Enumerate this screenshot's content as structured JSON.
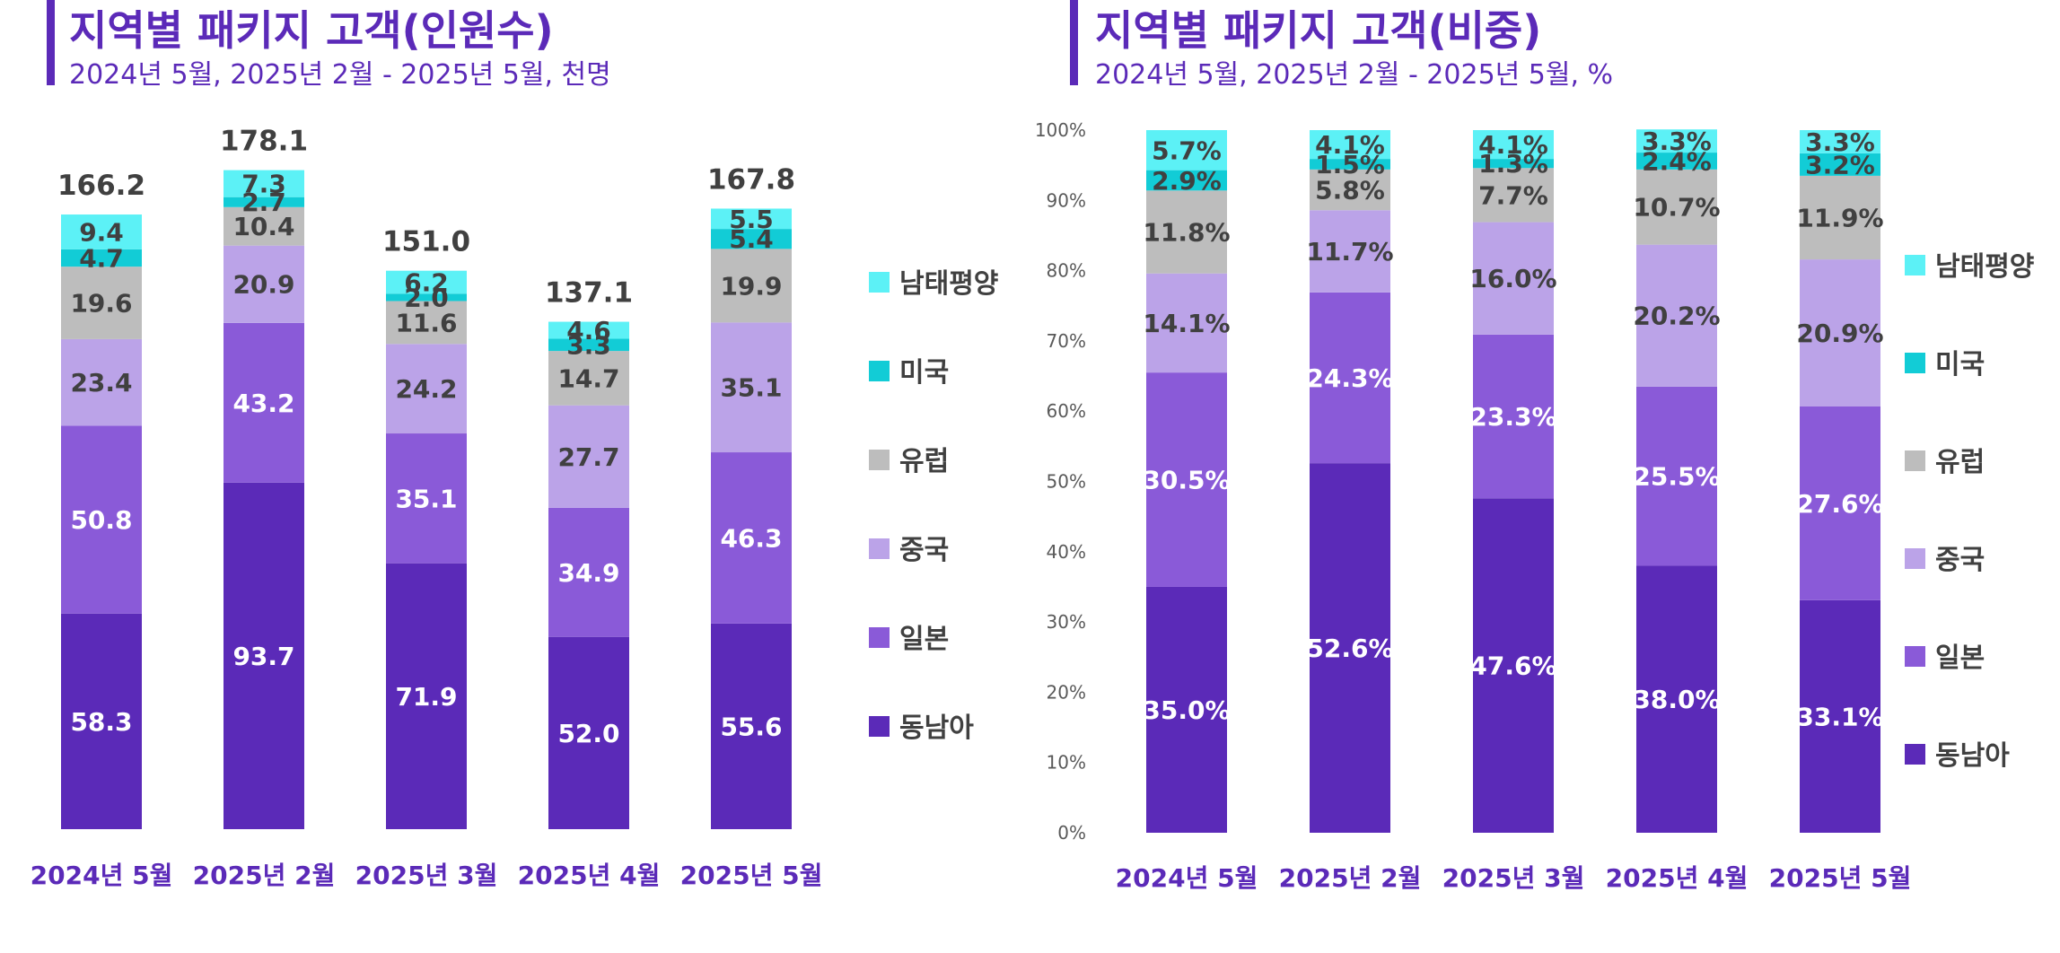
{
  "colors": {
    "동남아": "#5b2ab8",
    "일본": "#8a5ad8",
    "중국": "#bba3e8",
    "유럽": "#bdbdbd",
    "미국": "#12ccd6",
    "남태평양": "#5cf1f6",
    "title": "#5b2ab8",
    "label_dark": "#404040",
    "label_light": "#ffffff",
    "tick_text": "#595959"
  },
  "chart_data": [
    {
      "type": "bar",
      "stacked": true,
      "title": "지역별 패키지 고객(인원수)",
      "subtitle": "2024년 5월, 2025년 2월 - 2025년 5월, 천명",
      "categories": [
        "2024년 5월",
        "2025년 2월",
        "2025년 3월",
        "2025년 4월",
        "2025년 5월"
      ],
      "series": [
        {
          "name": "동남아",
          "values": [
            58.3,
            93.7,
            71.9,
            52.0,
            55.6
          ],
          "labels": [
            "58.3",
            "93.7",
            "71.9",
            "52.0",
            "55.6"
          ]
        },
        {
          "name": "일본",
          "values": [
            50.8,
            43.2,
            35.1,
            34.9,
            46.3
          ],
          "labels": [
            "50.8",
            "43.2",
            "35.1",
            "34.9",
            "46.3"
          ]
        },
        {
          "name": "중국",
          "values": [
            23.4,
            20.9,
            24.2,
            27.7,
            35.1
          ],
          "labels": [
            "23.4",
            "20.9",
            "24.2",
            "27.7",
            "35.1"
          ]
        },
        {
          "name": "유럽",
          "values": [
            19.6,
            10.4,
            11.6,
            14.7,
            19.9
          ],
          "labels": [
            "19.6",
            "10.4",
            "11.6",
            "14.7",
            "19.9"
          ]
        },
        {
          "name": "미국",
          "values": [
            4.7,
            2.7,
            2.0,
            3.3,
            5.4
          ],
          "labels": [
            "4.7",
            "2.7",
            "2.0",
            "3.3",
            "5.4"
          ]
        },
        {
          "name": "남태평양",
          "values": [
            9.4,
            7.3,
            6.2,
            4.6,
            5.5
          ],
          "labels": [
            "9.4",
            "7.3",
            "6.2",
            "4.6",
            "5.5"
          ]
        }
      ],
      "totals": [
        "166.2",
        "178.1",
        "151.0",
        "137.1",
        "167.8"
      ],
      "ylim": [
        0,
        190
      ],
      "y_axis_visible": false,
      "grid": false,
      "legend_position": "right",
      "legend_order": [
        "남태평양",
        "미국",
        "유럽",
        "중국",
        "일본",
        "동남아"
      ]
    },
    {
      "type": "bar",
      "stacked": true,
      "title": "지역별 패키지 고객(비중)",
      "subtitle": "2024년 5월, 2025년 2월 - 2025년 5월, %",
      "categories": [
        "2024년 5월",
        "2025년 2월",
        "2025년 3월",
        "2025년 4월",
        "2025년 5월"
      ],
      "series": [
        {
          "name": "동남아",
          "values": [
            35.0,
            52.6,
            47.6,
            38.0,
            33.1
          ],
          "labels": [
            "35.0%",
            "52.6%",
            "47.6%",
            "38.0%",
            "33.1%"
          ]
        },
        {
          "name": "일본",
          "values": [
            30.5,
            24.3,
            23.3,
            25.5,
            27.6
          ],
          "labels": [
            "30.5%",
            "24.3%",
            "23.3%",
            "25.5%",
            "27.6%"
          ]
        },
        {
          "name": "중국",
          "values": [
            14.1,
            11.7,
            16.0,
            20.2,
            20.9
          ],
          "labels": [
            "14.1%",
            "11.7%",
            "16.0%",
            "20.2%",
            "20.9%"
          ]
        },
        {
          "name": "유럽",
          "values": [
            11.8,
            5.8,
            7.7,
            10.7,
            11.9
          ],
          "labels": [
            "11.8%",
            "5.8%",
            "7.7%",
            "10.7%",
            "11.9%"
          ]
        },
        {
          "name": "미국",
          "values": [
            2.9,
            1.5,
            1.3,
            2.4,
            3.2
          ],
          "labels": [
            "2.9%",
            "1.5%",
            "1.3%",
            "2.4%",
            "3.2%"
          ]
        },
        {
          "name": "남태평양",
          "values": [
            5.7,
            4.1,
            4.1,
            3.3,
            3.3
          ],
          "labels": [
            "5.7%",
            "4.1%",
            "4.1%",
            "3.3%",
            "3.3%"
          ]
        }
      ],
      "yticks": [
        "0%",
        "10%",
        "20%",
        "30%",
        "40%",
        "50%",
        "60%",
        "70%",
        "80%",
        "90%",
        "100%"
      ],
      "ylim": [
        0,
        100
      ],
      "grid": false,
      "legend_position": "right",
      "legend_order": [
        "남태평양",
        "미국",
        "유럽",
        "중국",
        "일본",
        "동남아"
      ]
    }
  ]
}
